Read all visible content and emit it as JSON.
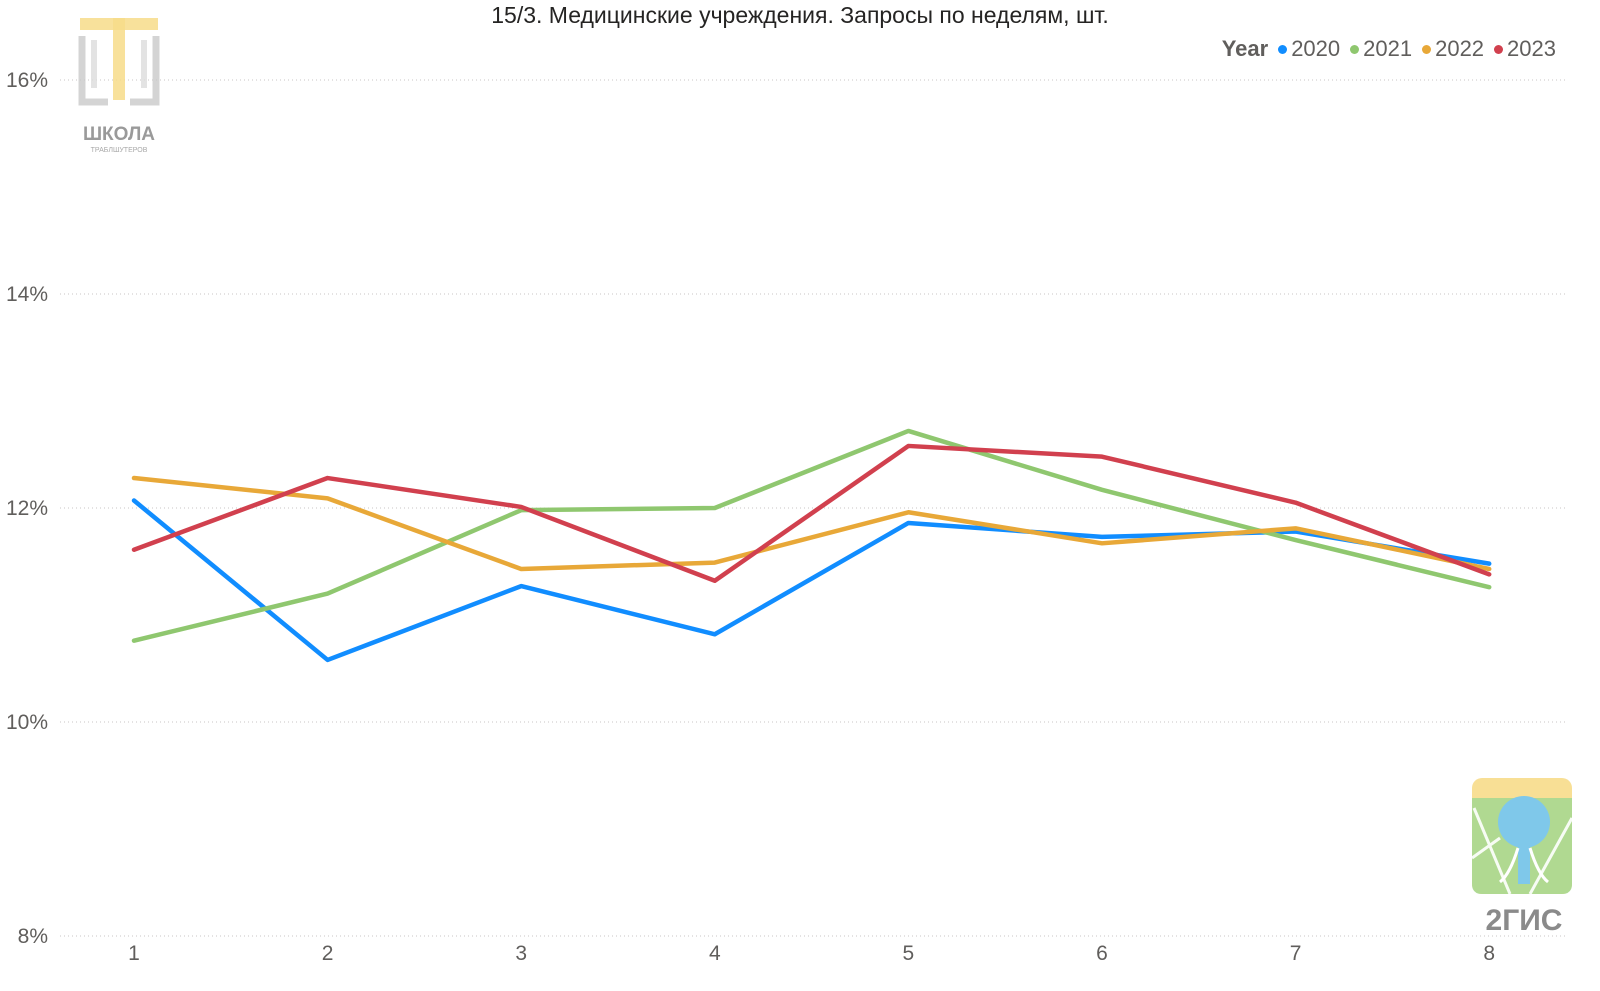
{
  "title": "15/3. Медицинские учреждения. Запросы по неделям, шт.",
  "legend": {
    "title": "Year",
    "items": [
      {
        "label": "2020",
        "color": "#118DFF"
      },
      {
        "label": "2021",
        "color": "#8FC76F"
      },
      {
        "label": "2022",
        "color": "#E8A838"
      },
      {
        "label": "2023",
        "color": "#D1404E"
      }
    ]
  },
  "logos": {
    "school": {
      "line1": "ШКОЛА",
      "line2": "ТРАБЛШУТЕРОВ"
    },
    "gis": {
      "text": "2ГИС"
    }
  },
  "chart_data": {
    "type": "line",
    "title": "15/3. Медицинские учреждения. Запросы по неделям, шт.",
    "xlabel": "",
    "ylabel": "",
    "categories": [
      "1",
      "2",
      "3",
      "4",
      "5",
      "6",
      "7",
      "8"
    ],
    "ylim": [
      8,
      16
    ],
    "yticks": [
      8,
      10,
      12,
      14,
      16
    ],
    "ytick_labels": [
      "8%",
      "10%",
      "12%",
      "14%",
      "16%"
    ],
    "grid": true,
    "legend_position": "top-right",
    "series": [
      {
        "name": "2020",
        "color": "#118DFF",
        "values": [
          12.07,
          10.58,
          11.27,
          10.82,
          11.86,
          11.73,
          11.78,
          11.48
        ]
      },
      {
        "name": "2021",
        "color": "#8FC76F",
        "values": [
          10.76,
          11.2,
          11.98,
          12.0,
          12.72,
          12.17,
          11.7,
          11.26
        ]
      },
      {
        "name": "2022",
        "color": "#E8A838",
        "values": [
          12.28,
          12.09,
          11.43,
          11.49,
          11.96,
          11.67,
          11.81,
          11.43
        ]
      },
      {
        "name": "2023",
        "color": "#D1404E",
        "values": [
          11.61,
          12.28,
          12.01,
          11.32,
          12.58,
          12.48,
          12.05,
          11.38
        ]
      }
    ]
  }
}
